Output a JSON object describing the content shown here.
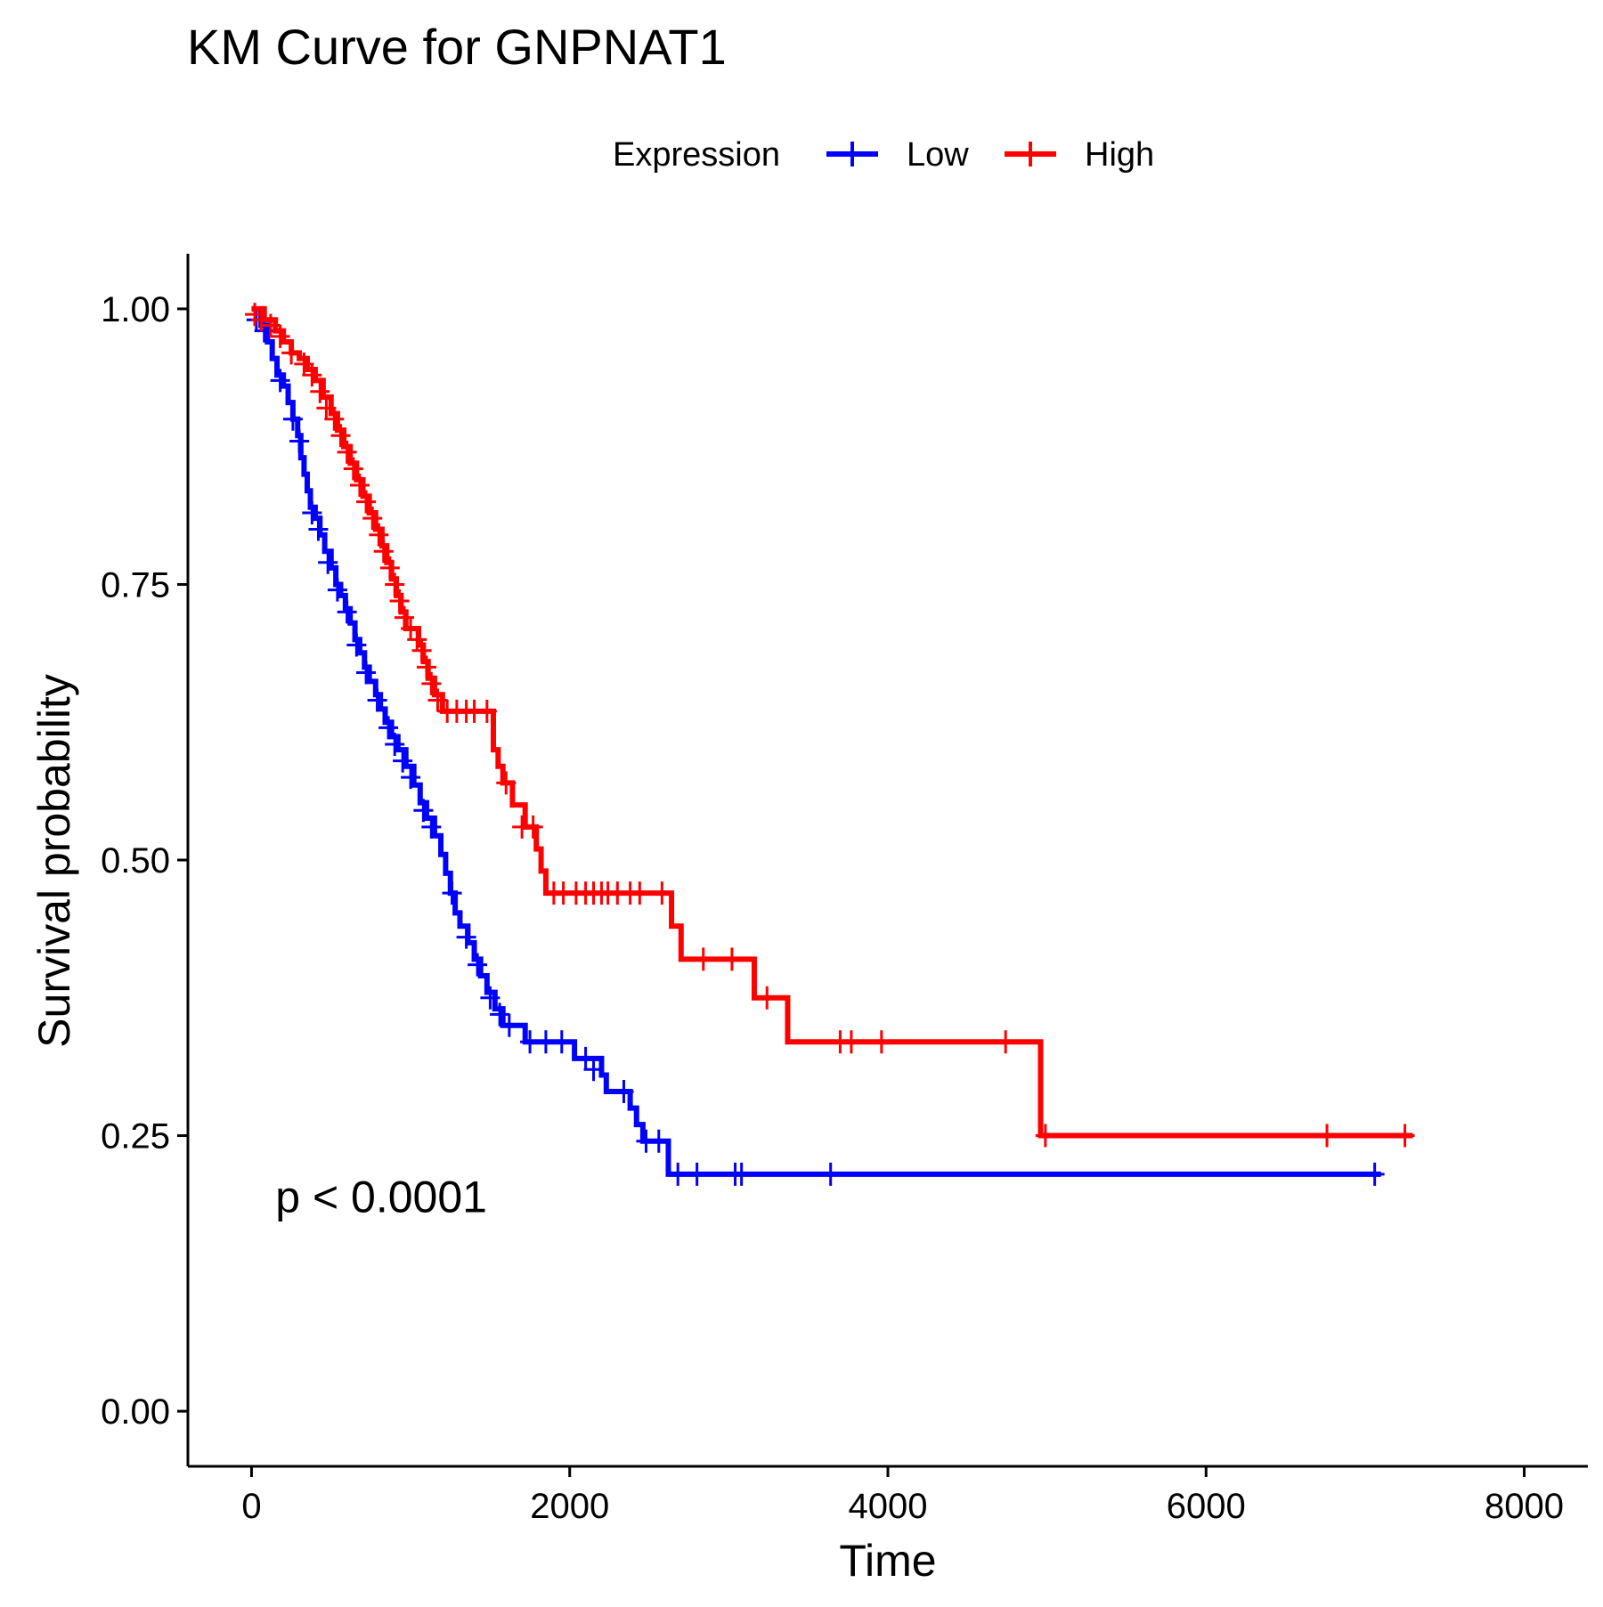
{
  "chart_data": {
    "type": "line",
    "title": "KM Curve for GNPNAT1",
    "xlabel": "Time",
    "ylabel": "Survival probability",
    "xlim": [
      -400,
      8400
    ],
    "ylim": [
      -0.05,
      1.05
    ],
    "xticks": [
      0,
      2000,
      4000,
      6000,
      8000
    ],
    "xtick_labels": [
      "0",
      "2000",
      "4000",
      "6000",
      "8000"
    ],
    "yticks": [
      0,
      0.25,
      0.5,
      0.75,
      1.0
    ],
    "ytick_labels": [
      "0.00",
      "0.25",
      "0.50",
      "0.75",
      "1.00"
    ],
    "grid": false,
    "legend": {
      "title": "Expression",
      "position": "top"
    },
    "annotation": {
      "text": "p < 0.0001",
      "x": 150,
      "y": 0.195
    },
    "series": [
      {
        "name": "Low",
        "color": "#0000ff",
        "steps": [
          [
            0,
            1.0
          ],
          [
            60,
            0.985
          ],
          [
            100,
            0.97
          ],
          [
            130,
            0.955
          ],
          [
            160,
            0.94
          ],
          [
            200,
            0.93
          ],
          [
            230,
            0.915
          ],
          [
            260,
            0.9
          ],
          [
            290,
            0.885
          ],
          [
            310,
            0.865
          ],
          [
            330,
            0.85
          ],
          [
            350,
            0.835
          ],
          [
            370,
            0.82
          ],
          [
            400,
            0.81
          ],
          [
            430,
            0.795
          ],
          [
            460,
            0.78
          ],
          [
            500,
            0.765
          ],
          [
            530,
            0.75
          ],
          [
            560,
            0.74
          ],
          [
            590,
            0.728
          ],
          [
            620,
            0.715
          ],
          [
            650,
            0.7
          ],
          [
            680,
            0.688
          ],
          [
            710,
            0.675
          ],
          [
            740,
            0.662
          ],
          [
            780,
            0.65
          ],
          [
            810,
            0.637
          ],
          [
            840,
            0.625
          ],
          [
            880,
            0.612
          ],
          [
            920,
            0.6
          ],
          [
            970,
            0.585
          ],
          [
            1020,
            0.568
          ],
          [
            1060,
            0.552
          ],
          [
            1100,
            0.538
          ],
          [
            1150,
            0.522
          ],
          [
            1190,
            0.505
          ],
          [
            1220,
            0.488
          ],
          [
            1250,
            0.47
          ],
          [
            1280,
            0.452
          ],
          [
            1310,
            0.44
          ],
          [
            1360,
            0.425
          ],
          [
            1400,
            0.41
          ],
          [
            1440,
            0.395
          ],
          [
            1480,
            0.38
          ],
          [
            1530,
            0.365
          ],
          [
            1580,
            0.35
          ],
          [
            1720,
            0.335
          ],
          [
            2030,
            0.32
          ],
          [
            2200,
            0.305
          ],
          [
            2230,
            0.29
          ],
          [
            2380,
            0.275
          ],
          [
            2420,
            0.26
          ],
          [
            2460,
            0.245
          ],
          [
            2620,
            0.215
          ],
          [
            7100,
            0.215
          ]
        ],
        "censors": [
          [
            30,
            0.99
          ],
          [
            80,
            0.98
          ],
          [
            180,
            0.935
          ],
          [
            260,
            0.9
          ],
          [
            300,
            0.88
          ],
          [
            380,
            0.815
          ],
          [
            420,
            0.8
          ],
          [
            480,
            0.77
          ],
          [
            540,
            0.745
          ],
          [
            600,
            0.725
          ],
          [
            660,
            0.695
          ],
          [
            720,
            0.67
          ],
          [
            790,
            0.645
          ],
          [
            860,
            0.62
          ],
          [
            900,
            0.605
          ],
          [
            950,
            0.59
          ],
          [
            1000,
            0.575
          ],
          [
            1080,
            0.545
          ],
          [
            1130,
            0.53
          ],
          [
            1260,
            0.47
          ],
          [
            1350,
            0.43
          ],
          [
            1420,
            0.405
          ],
          [
            1500,
            0.375
          ],
          [
            1560,
            0.36
          ],
          [
            1620,
            0.35
          ],
          [
            1750,
            0.335
          ],
          [
            1850,
            0.335
          ],
          [
            1950,
            0.335
          ],
          [
            2100,
            0.32
          ],
          [
            2150,
            0.31
          ],
          [
            2340,
            0.29
          ],
          [
            2480,
            0.245
          ],
          [
            2560,
            0.245
          ],
          [
            2680,
            0.215
          ],
          [
            2800,
            0.215
          ],
          [
            3040,
            0.215
          ],
          [
            3080,
            0.215
          ],
          [
            3640,
            0.215
          ],
          [
            7060,
            0.215
          ]
        ]
      },
      {
        "name": "High",
        "color": "#ff0000",
        "steps": [
          [
            0,
            1.0
          ],
          [
            80,
            0.99
          ],
          [
            150,
            0.98
          ],
          [
            200,
            0.97
          ],
          [
            250,
            0.96
          ],
          [
            300,
            0.955
          ],
          [
            350,
            0.945
          ],
          [
            400,
            0.935
          ],
          [
            450,
            0.92
          ],
          [
            500,
            0.905
          ],
          [
            540,
            0.89
          ],
          [
            580,
            0.875
          ],
          [
            620,
            0.86
          ],
          [
            660,
            0.845
          ],
          [
            700,
            0.83
          ],
          [
            740,
            0.815
          ],
          [
            780,
            0.8
          ],
          [
            820,
            0.785
          ],
          [
            850,
            0.77
          ],
          [
            880,
            0.755
          ],
          [
            910,
            0.74
          ],
          [
            940,
            0.725
          ],
          [
            970,
            0.71
          ],
          [
            1050,
            0.695
          ],
          [
            1080,
            0.68
          ],
          [
            1110,
            0.665
          ],
          [
            1150,
            0.65
          ],
          [
            1200,
            0.635
          ],
          [
            1520,
            0.6
          ],
          [
            1550,
            0.585
          ],
          [
            1580,
            0.57
          ],
          [
            1640,
            0.55
          ],
          [
            1720,
            0.53
          ],
          [
            1790,
            0.51
          ],
          [
            1820,
            0.49
          ],
          [
            1850,
            0.47
          ],
          [
            2640,
            0.44
          ],
          [
            2700,
            0.41
          ],
          [
            3160,
            0.375
          ],
          [
            3370,
            0.335
          ],
          [
            4960,
            0.25
          ],
          [
            7300,
            0.25
          ]
        ],
        "censors": [
          [
            20,
            0.995
          ],
          [
            60,
            0.99
          ],
          [
            120,
            0.985
          ],
          [
            180,
            0.975
          ],
          [
            250,
            0.96
          ],
          [
            330,
            0.95
          ],
          [
            380,
            0.94
          ],
          [
            430,
            0.925
          ],
          [
            470,
            0.91
          ],
          [
            520,
            0.9
          ],
          [
            560,
            0.885
          ],
          [
            600,
            0.87
          ],
          [
            640,
            0.855
          ],
          [
            680,
            0.84
          ],
          [
            720,
            0.825
          ],
          [
            760,
            0.81
          ],
          [
            800,
            0.795
          ],
          [
            830,
            0.78
          ],
          [
            870,
            0.765
          ],
          [
            900,
            0.75
          ],
          [
            930,
            0.735
          ],
          [
            960,
            0.72
          ],
          [
            1000,
            0.71
          ],
          [
            1040,
            0.7
          ],
          [
            1070,
            0.69
          ],
          [
            1100,
            0.675
          ],
          [
            1130,
            0.66
          ],
          [
            1170,
            0.645
          ],
          [
            1230,
            0.635
          ],
          [
            1290,
            0.635
          ],
          [
            1350,
            0.635
          ],
          [
            1400,
            0.635
          ],
          [
            1480,
            0.635
          ],
          [
            1600,
            0.57
          ],
          [
            1700,
            0.53
          ],
          [
            1770,
            0.53
          ],
          [
            1900,
            0.47
          ],
          [
            1960,
            0.47
          ],
          [
            2040,
            0.47
          ],
          [
            2100,
            0.47
          ],
          [
            2150,
            0.47
          ],
          [
            2200,
            0.47
          ],
          [
            2240,
            0.47
          ],
          [
            2300,
            0.47
          ],
          [
            2380,
            0.47
          ],
          [
            2440,
            0.47
          ],
          [
            2580,
            0.47
          ],
          [
            2840,
            0.41
          ],
          [
            3020,
            0.41
          ],
          [
            3240,
            0.375
          ],
          [
            3700,
            0.335
          ],
          [
            3770,
            0.335
          ],
          [
            3960,
            0.335
          ],
          [
            4740,
            0.335
          ],
          [
            4990,
            0.25
          ],
          [
            6760,
            0.25
          ],
          [
            7250,
            0.25
          ]
        ]
      }
    ]
  }
}
